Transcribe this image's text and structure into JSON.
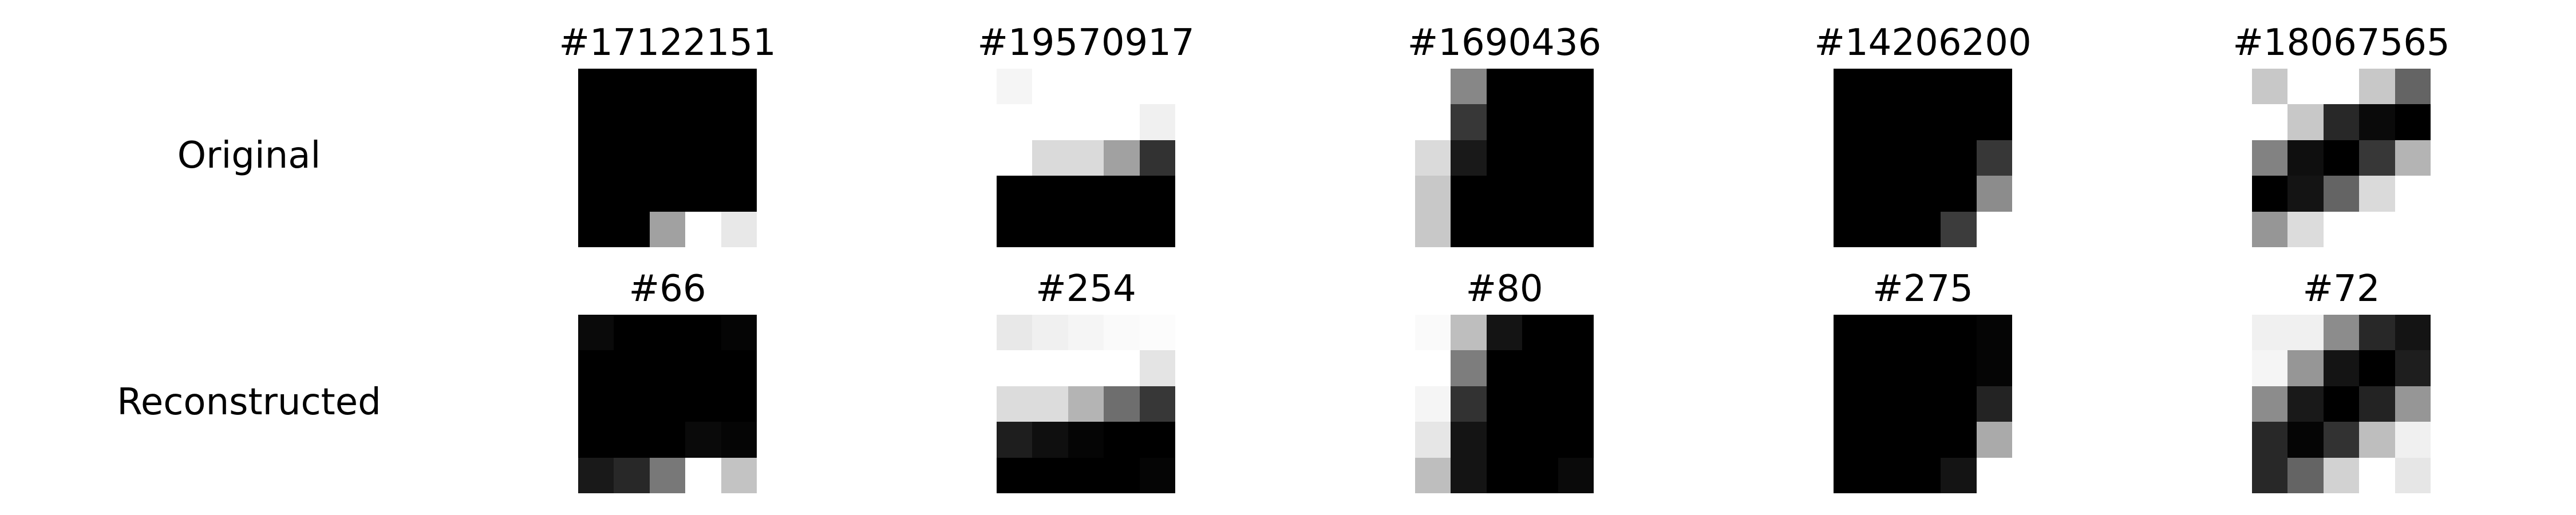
{
  "rows": [
    {
      "label": "Original",
      "tiles": [
        {
          "title": "#17122151",
          "pixels": [
            [
              0,
              0,
              0,
              0,
              0
            ],
            [
              0,
              0,
              0,
              0,
              0
            ],
            [
              0,
              0,
              0,
              0,
              0
            ],
            [
              0,
              0,
              0,
              0,
              0
            ],
            [
              0,
              0,
              161,
              255,
              232
            ]
          ]
        },
        {
          "title": "#19570917",
          "pixels": [
            [
              245,
              255,
              255,
              255,
              255
            ],
            [
              255,
              255,
              255,
              255,
              240
            ],
            [
              255,
              218,
              218,
              161,
              50
            ],
            [
              0,
              0,
              0,
              0,
              0
            ],
            [
              0,
              0,
              0,
              0,
              0
            ]
          ]
        },
        {
          "title": "#1690436",
          "pixels": [
            [
              255,
              135,
              0,
              0,
              0
            ],
            [
              255,
              55,
              0,
              0,
              0
            ],
            [
              218,
              25,
              0,
              0,
              0
            ],
            [
              200,
              0,
              0,
              0,
              0
            ],
            [
              200,
              0,
              0,
              0,
              0
            ]
          ]
        },
        {
          "title": "#14206200",
          "pixels": [
            [
              0,
              0,
              0,
              0,
              0
            ],
            [
              0,
              0,
              0,
              0,
              0
            ],
            [
              0,
              0,
              0,
              0,
              55
            ],
            [
              0,
              0,
              0,
              0,
              140
            ],
            [
              0,
              0,
              0,
              60,
              255
            ]
          ]
        },
        {
          "title": "#18067565",
          "pixels": [
            [
              200,
              255,
              255,
              200,
              100
            ],
            [
              255,
              200,
              40,
              10,
              0
            ],
            [
              130,
              15,
              0,
              55,
              180
            ],
            [
              0,
              20,
              100,
              218,
              255
            ],
            [
              150,
              220,
              255,
              255,
              255
            ]
          ]
        }
      ]
    },
    {
      "label": "Reconstructed",
      "tiles": [
        {
          "title": "#66",
          "pixels": [
            [
              10,
              0,
              0,
              0,
              5
            ],
            [
              0,
              0,
              0,
              0,
              0
            ],
            [
              0,
              0,
              0,
              0,
              0
            ],
            [
              0,
              0,
              0,
              10,
              5
            ],
            [
              25,
              40,
              120,
              255,
              195
            ]
          ]
        },
        {
          "title": "#254",
          "pixels": [
            [
              232,
              240,
              245,
              250,
              252
            ],
            [
              255,
              255,
              255,
              255,
              228
            ],
            [
              220,
              220,
              180,
              110,
              55
            ],
            [
              30,
              15,
              5,
              0,
              0
            ],
            [
              0,
              0,
              0,
              0,
              5
            ]
          ]
        },
        {
          "title": "#80",
          "pixels": [
            [
              250,
              190,
              20,
              0,
              0
            ],
            [
              255,
              125,
              0,
              0,
              0
            ],
            [
              245,
              50,
              0,
              0,
              0
            ],
            [
              230,
              20,
              0,
              0,
              0
            ],
            [
              190,
              20,
              0,
              0,
              10
            ]
          ]
        },
        {
          "title": "#275",
          "pixels": [
            [
              0,
              0,
              0,
              0,
              5
            ],
            [
              0,
              0,
              0,
              0,
              5
            ],
            [
              0,
              0,
              0,
              0,
              35
            ],
            [
              0,
              0,
              0,
              0,
              170
            ],
            [
              0,
              0,
              0,
              20,
              255
            ]
          ]
        },
        {
          "title": "#72",
          "pixels": [
            [
              240,
              240,
              140,
              40,
              20
            ],
            [
              245,
              150,
              20,
              0,
              30
            ],
            [
              140,
              25,
              0,
              35,
              150
            ],
            [
              40,
              5,
              50,
              190,
              240
            ],
            [
              40,
              100,
              210,
              255,
              230
            ]
          ]
        }
      ]
    }
  ]
}
